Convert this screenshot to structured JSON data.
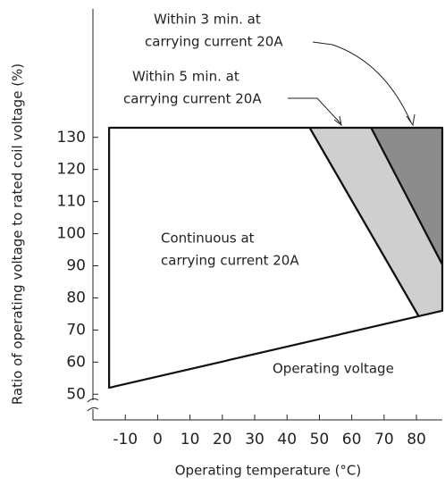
{
  "chart_data": {
    "type": "polygon",
    "xlabel": "Operating temperature (°C)",
    "ylabel": "Ratio of operating voltage to rated coil voltage (%)",
    "xlim": [
      -20,
      88
    ],
    "ylim": [
      42,
      170
    ],
    "xticks": [
      -10,
      0,
      10,
      20,
      30,
      40,
      50,
      60,
      70,
      80
    ],
    "yticks": [
      50,
      60,
      70,
      80,
      90,
      100,
      110,
      120,
      130
    ],
    "series": [
      {
        "name": [
          "Continuous at",
          "carrying current 20A"
        ],
        "color": "#ffffff",
        "x": [
          -15,
          -15,
          47,
          80.7
        ],
        "values": [
          52,
          133,
          133,
          74.3
        ]
      },
      {
        "name": [
          "Within 5 min. at",
          "carrying current 20A"
        ],
        "color": "#cfcfcf",
        "x": [
          47,
          66,
          88,
          88,
          80.7
        ],
        "values": [
          133,
          133,
          90.4,
          76,
          74.3
        ]
      },
      {
        "name": [
          "Within 3 min. at",
          "carrying current 20A"
        ],
        "color": "#8c8c8c",
        "x": [
          66,
          88,
          88
        ],
        "values": [
          133,
          133,
          90.4
        ]
      }
    ],
    "annotations": [
      "Operating voltage"
    ]
  }
}
